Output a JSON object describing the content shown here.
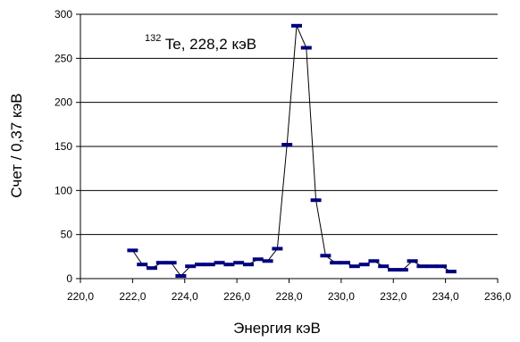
{
  "chart_data": {
    "type": "line",
    "title": "",
    "xlabel": "Энергия кэВ",
    "ylabel": "Счет / 0,37 кэВ",
    "annotation": {
      "superscript": "132",
      "text": "Te, 228,2 кэВ"
    },
    "xlim": [
      220,
      236
    ],
    "ylim": [
      0,
      300
    ],
    "x_ticks": [
      "220,0",
      "222,0",
      "224,0",
      "226,0",
      "228,0",
      "230,0",
      "232,0",
      "234,0",
      "236,0"
    ],
    "y_ticks": [
      "0",
      "50",
      "100",
      "150",
      "200",
      "250",
      "300"
    ],
    "grid": "horizontal",
    "colors": {
      "line": "#000000",
      "marker": "#00007f",
      "grid": "#000000"
    },
    "series": [
      {
        "x": [
          222.0,
          222.37,
          222.74,
          223.11,
          223.48,
          223.85,
          224.22,
          224.59,
          224.96,
          225.33,
          225.7,
          226.07,
          226.44,
          226.81,
          227.18,
          227.55,
          227.92,
          228.29,
          228.66,
          229.03,
          229.4,
          229.77,
          230.14,
          230.51,
          230.88,
          231.25,
          231.62,
          231.99,
          232.36,
          232.73,
          233.1,
          233.47,
          233.84,
          234.21
        ],
        "values": [
          32,
          16,
          12,
          18,
          18,
          3,
          14,
          16,
          16,
          18,
          16,
          18,
          16,
          22,
          20,
          34,
          152,
          287,
          262,
          89,
          26,
          18,
          18,
          14,
          16,
          20,
          14,
          10,
          10,
          20,
          14,
          14,
          14,
          8
        ]
      }
    ]
  }
}
